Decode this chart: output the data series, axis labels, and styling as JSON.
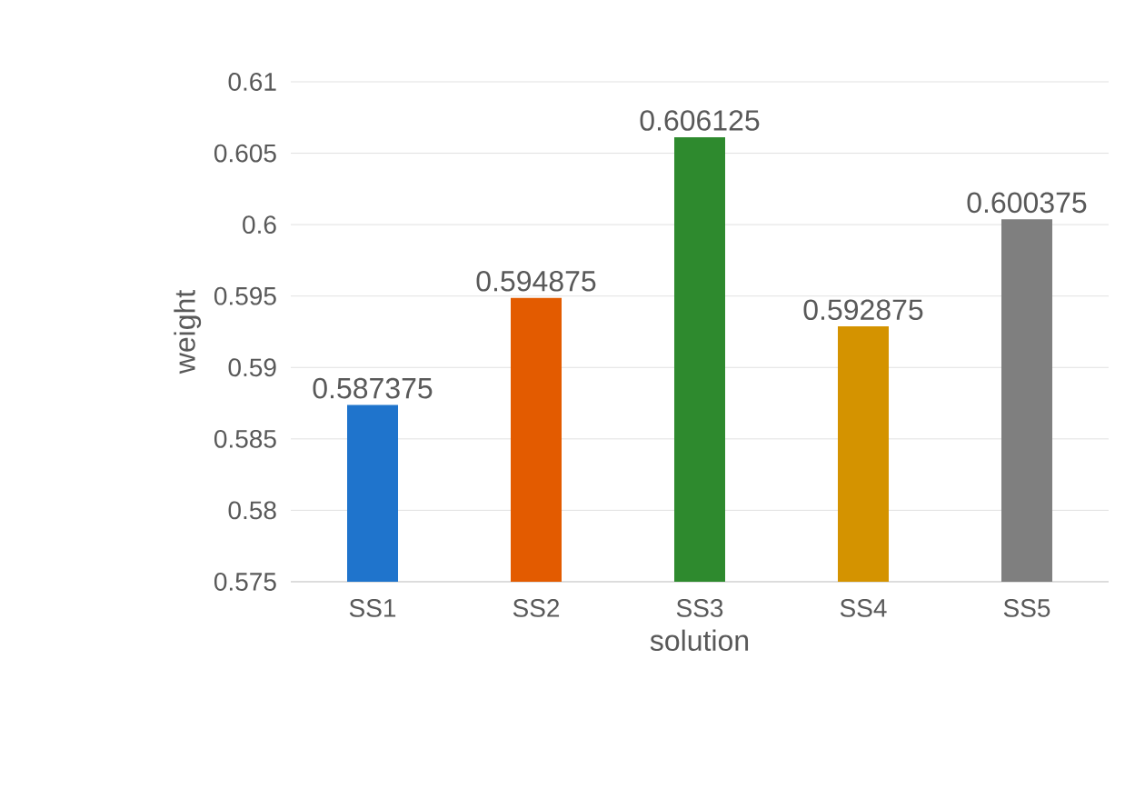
{
  "chart_data": {
    "type": "bar",
    "xlabel": "solution",
    "ylabel": "weight",
    "categories": [
      "SS1",
      "SS2",
      "SS3",
      "SS4",
      "SS5"
    ],
    "values": [
      0.587375,
      0.594875,
      0.606125,
      0.592875,
      0.600375
    ],
    "colors": [
      "#1f74cc",
      "#e35b00",
      "#2e8a2e",
      "#d49300",
      "#7f7f7f"
    ],
    "ylim": [
      0.575,
      0.61
    ],
    "yticks": [
      0.575,
      0.58,
      0.585,
      0.59,
      0.595,
      0.6,
      0.605,
      0.61
    ],
    "grid": "y",
    "data_labels": true
  }
}
